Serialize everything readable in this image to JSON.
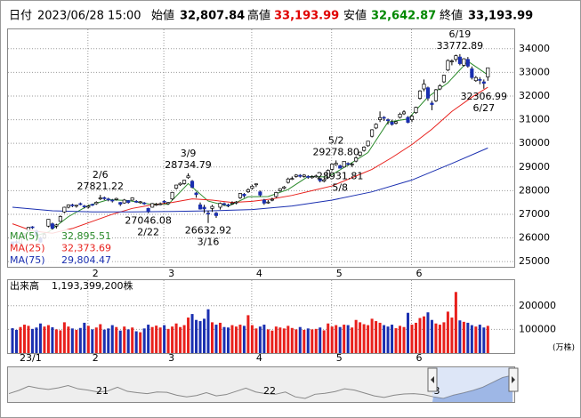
{
  "chart_data": {
    "type": "candlestick",
    "header": {
      "date_label": "日付",
      "date": "2023/06/28 15:00",
      "open_label": "始値",
      "open": "32,807.84",
      "high_label": "高値",
      "high": "33,193.99",
      "low_label": "安値",
      "low": "32,642.87",
      "close_label": "終値",
      "close": "33,193.99"
    },
    "categories": [
      "23/1",
      null,
      null,
      null,
      null,
      null,
      null,
      null,
      null,
      null,
      null,
      null,
      null,
      null,
      null,
      null,
      null,
      null,
      null,
      "2",
      null,
      null,
      null,
      null,
      null,
      null,
      null,
      null,
      null,
      null,
      null,
      null,
      null,
      null,
      null,
      null,
      null,
      null,
      "3",
      null,
      null,
      null,
      null,
      null,
      null,
      null,
      null,
      null,
      null,
      null,
      null,
      null,
      null,
      null,
      null,
      null,
      null,
      null,
      null,
      null,
      "4",
      null,
      null,
      null,
      null,
      null,
      null,
      null,
      null,
      null,
      null,
      null,
      null,
      null,
      null,
      null,
      null,
      null,
      null,
      null,
      "5",
      null,
      null,
      null,
      null,
      null,
      null,
      null,
      null,
      null,
      null,
      null,
      null,
      null,
      null,
      null,
      null,
      null,
      null,
      null,
      "6",
      null,
      null,
      null,
      null,
      null,
      null,
      null,
      null,
      null,
      null,
      null,
      null,
      null,
      null,
      null,
      null,
      null,
      null,
      null
    ],
    "ohlc": [
      [
        25834,
        25834,
        25661,
        25716
      ],
      [
        25840,
        25900,
        25750,
        25820
      ],
      [
        25780,
        26000,
        25700,
        25973
      ],
      [
        26100,
        26200,
        25980,
        26175
      ],
      [
        26300,
        26460,
        26250,
        26446
      ],
      [
        26470,
        26500,
        26380,
        26449
      ],
      [
        26300,
        26350,
        26050,
        26119
      ],
      [
        26000,
        26050,
        25800,
        25822
      ],
      [
        26000,
        26200,
        25950,
        26138
      ],
      [
        26500,
        26800,
        26450,
        26791
      ],
      [
        26600,
        26650,
        26350,
        26405
      ],
      [
        26500,
        26600,
        26400,
        26553
      ],
      [
        26700,
        26950,
        26680,
        26906
      ],
      [
        27100,
        27320,
        27050,
        27299
      ],
      [
        27300,
        27420,
        27250,
        27395
      ],
      [
        27400,
        27450,
        27300,
        27362
      ],
      [
        27350,
        27400,
        27280,
        27382
      ],
      [
        27450,
        27500,
        27380,
        27433
      ],
      [
        27350,
        27400,
        27250,
        27327
      ],
      [
        27300,
        27400,
        27250,
        27346
      ],
      [
        27420,
        27450,
        27350,
        27402
      ],
      [
        27450,
        27550,
        27400,
        27509
      ],
      [
        27650,
        27821.22,
        27600,
        27693
      ],
      [
        27700,
        27750,
        27600,
        27685
      ],
      [
        27650,
        27700,
        27550,
        27606
      ],
      [
        27600,
        27650,
        27500,
        27584
      ],
      [
        27620,
        27700,
        27580,
        27670
      ],
      [
        27500,
        27520,
        27350,
        27427
      ],
      [
        27480,
        27650,
        27450,
        27602
      ],
      [
        27580,
        27600,
        27450,
        27501
      ],
      [
        27600,
        27720,
        27580,
        27696
      ],
      [
        27550,
        27600,
        27480,
        27513
      ],
      [
        27500,
        27560,
        27450,
        27531
      ],
      [
        27480,
        27520,
        27400,
        27473
      ],
      [
        27250,
        27280,
        27046.08,
        27104
      ],
      [
        27300,
        27480,
        27280,
        27453
      ],
      [
        27400,
        27480,
        27350,
        27423
      ],
      [
        27420,
        27500,
        27380,
        27445
      ],
      [
        27550,
        27600,
        27450,
        27516
      ],
      [
        27450,
        27520,
        27400,
        27498
      ],
      [
        27650,
        27950,
        27600,
        27927
      ],
      [
        28100,
        28250,
        28050,
        28237
      ],
      [
        28250,
        28350,
        28200,
        28309
      ],
      [
        28300,
        28460,
        28250,
        28444
      ],
      [
        28550,
        28734.79,
        28500,
        28623
      ],
      [
        28400,
        28450,
        28100,
        28143
      ],
      [
        27900,
        27950,
        27700,
        27832
      ],
      [
        27400,
        27500,
        27200,
        27222
      ],
      [
        27300,
        27400,
        27050,
        27229
      ],
      [
        27050,
        27150,
        26632.92,
        27010
      ],
      [
        27250,
        27400,
        27100,
        27333
      ],
      [
        27050,
        27100,
        26850,
        26945
      ],
      [
        27300,
        27500,
        27200,
        27466
      ],
      [
        27450,
        27500,
        27350,
        27419
      ],
      [
        27400,
        27450,
        27300,
        27385
      ],
      [
        27450,
        27550,
        27400,
        27476
      ],
      [
        27500,
        27560,
        27420,
        27518
      ],
      [
        27700,
        27900,
        27650,
        27883
      ],
      [
        27850,
        27900,
        27700,
        27782
      ],
      [
        27950,
        28100,
        27900,
        28041
      ],
      [
        28100,
        28250,
        28050,
        28188
      ],
      [
        28250,
        28300,
        28150,
        28287
      ],
      [
        27950,
        28000,
        27750,
        27813
      ],
      [
        27600,
        27650,
        27400,
        27472
      ],
      [
        27500,
        27600,
        27450,
        27518
      ],
      [
        27600,
        27700,
        27550,
        27633
      ],
      [
        27750,
        27950,
        27700,
        27923
      ],
      [
        28000,
        28100,
        27950,
        28082
      ],
      [
        28100,
        28200,
        28050,
        28156
      ],
      [
        28350,
        28550,
        28300,
        28493
      ],
      [
        28500,
        28600,
        28450,
        28514
      ],
      [
        28600,
        28700,
        28550,
        28658
      ],
      [
        28650,
        28700,
        28550,
        28606
      ],
      [
        28600,
        28700,
        28550,
        28657
      ],
      [
        28600,
        28650,
        28500,
        28564
      ],
      [
        28550,
        28650,
        28500,
        28593
      ],
      [
        28600,
        28680,
        28550,
        28620
      ],
      [
        28500,
        28550,
        28350,
        28416
      ],
      [
        28400,
        28500,
        28350,
        28457
      ],
      [
        28550,
        28900,
        28500,
        28856
      ],
      [
        28900,
        29150,
        28850,
        29123
      ],
      [
        29100,
        29278.8,
        29050,
        29157
      ],
      [
        29050,
        29100,
        28931.81,
        28949
      ],
      [
        29000,
        29250,
        28980,
        29242
      ],
      [
        29150,
        29200,
        29050,
        29122
      ],
      [
        29100,
        29180,
        29000,
        29126
      ],
      [
        29250,
        29450,
        29200,
        29388
      ],
      [
        29500,
        29650,
        29450,
        29626
      ],
      [
        29700,
        29880,
        29650,
        29842
      ],
      [
        29900,
        30100,
        29850,
        30093
      ],
      [
        30300,
        30600,
        30250,
        30573
      ],
      [
        30650,
        30850,
        30600,
        30808
      ],
      [
        31000,
        31350,
        30900,
        31086
      ],
      [
        31100,
        31150,
        30950,
        31086
      ],
      [
        31000,
        31050,
        30800,
        30957
      ],
      [
        30900,
        31000,
        30750,
        30801
      ],
      [
        30850,
        30950,
        30800,
        30916
      ],
      [
        31100,
        31300,
        31050,
        31233
      ],
      [
        31250,
        31400,
        31200,
        31328
      ],
      [
        31100,
        31150,
        30850,
        30887
      ],
      [
        31000,
        31200,
        30900,
        31148
      ],
      [
        31300,
        31550,
        31250,
        31524
      ],
      [
        31900,
        32250,
        31850,
        32217
      ],
      [
        32300,
        32700,
        32200,
        32506
      ],
      [
        32350,
        32400,
        31800,
        31913
      ],
      [
        31700,
        31800,
        31400,
        31641
      ],
      [
        31800,
        32300,
        31750,
        32265
      ],
      [
        32300,
        32500,
        32250,
        32434
      ],
      [
        32600,
        32900,
        32550,
        32880
      ],
      [
        33100,
        33550,
        33050,
        33502
      ],
      [
        33450,
        33550,
        33300,
        33485
      ],
      [
        33550,
        33750,
        33450,
        33706
      ],
      [
        33650,
        33772.89,
        33300,
        33370
      ],
      [
        33300,
        33600,
        33250,
        33575
      ],
      [
        33550,
        33650,
        33200,
        33264
      ],
      [
        33150,
        33250,
        32700,
        32781
      ],
      [
        32650,
        32850,
        32600,
        32781
      ],
      [
        32700,
        32800,
        32500,
        32698
      ],
      [
        32600,
        32700,
        32306.99,
        32538
      ],
      [
        32807.84,
        33193.99,
        32642.87,
        33193.99
      ]
    ],
    "volume": [
      105000,
      98000,
      110000,
      120000,
      115000,
      102000,
      108000,
      125000,
      112000,
      118000,
      109000,
      100000,
      96000,
      130000,
      112000,
      104000,
      98000,
      106000,
      128000,
      115000,
      100000,
      108000,
      122000,
      99000,
      104000,
      118000,
      110000,
      95000,
      112000,
      100000,
      108000,
      92000,
      88000,
      104000,
      120000,
      110000,
      116000,
      108000,
      118000,
      102000,
      112000,
      125000,
      110000,
      118000,
      150000,
      165000,
      140000,
      135000,
      145000,
      185000,
      130000,
      120000,
      128000,
      110000,
      108000,
      118000,
      112000,
      120000,
      115000,
      160000,
      118000,
      104000,
      112000,
      120000,
      100000,
      95000,
      112000,
      108000,
      104000,
      115000,
      106000,
      100000,
      110000,
      98000,
      104000,
      100000,
      102000,
      108000,
      96000,
      125000,
      112000,
      118000,
      110000,
      120000,
      118000,
      108000,
      140000,
      130000,
      122000,
      118000,
      145000,
      135000,
      128000,
      118000,
      112000,
      120000,
      105000,
      115000,
      110000,
      170000,
      120000,
      128000,
      148000,
      155000,
      172000,
      140000,
      125000,
      120000,
      130000,
      175000,
      150000,
      258000,
      138000,
      132000,
      128000,
      118000,
      112000,
      120000,
      108000,
      115000
    ],
    "ylim": [
      24780,
      34820
    ],
    "yticks": [
      25000,
      26000,
      27000,
      28000,
      29000,
      30000,
      31000,
      32000,
      33000,
      34000
    ],
    "volume_ylim": [
      0,
      308000
    ],
    "volume_yticks": [
      100000,
      200000
    ],
    "volume_title": "出来高",
    "volume_total": "1,193,399,200株",
    "volume_unit": "(万株)",
    "up_color": "#e8201c",
    "down_color": "#1a2fb0",
    "grid": true,
    "series": [
      {
        "name": "MA(5)",
        "color": "#2a8a2a",
        "legend_label": "32,895.51",
        "x": [
          4,
          9,
          14,
          19,
          24,
          29,
          34,
          39,
          44,
          49,
          54,
          59,
          64,
          69,
          74,
          79,
          84,
          89,
          94,
          99,
          104,
          109,
          114,
          119
        ],
        "values": [
          26000,
          26250,
          26900,
          27370,
          27620,
          27580,
          27440,
          27420,
          28300,
          27560,
          27340,
          27740,
          27750,
          28050,
          28600,
          28580,
          29080,
          29610,
          30900,
          31030,
          31960,
          32560,
          33470,
          32895.51
        ]
      },
      {
        "name": "MA(25)",
        "color": "#e8201c",
        "legend_label": "32,373.69",
        "x": [
          0,
          5,
          10,
          15,
          20,
          25,
          30,
          35,
          40,
          45,
          50,
          55,
          60,
          65,
          70,
          75,
          80,
          85,
          90,
          95,
          100,
          105,
          110,
          115,
          119
        ],
        "values": [
          26600,
          26300,
          26200,
          26400,
          26700,
          27000,
          27250,
          27400,
          27500,
          27650,
          27600,
          27500,
          27550,
          27650,
          27800,
          28000,
          28200,
          28550,
          28900,
          29400,
          29950,
          30600,
          31350,
          31950,
          32373.69
        ]
      },
      {
        "name": "MA(75)",
        "color": "#1a2fb0",
        "legend_label": "29,804.47",
        "x": [
          0,
          10,
          20,
          30,
          40,
          50,
          60,
          70,
          80,
          90,
          100,
          110,
          119
        ],
        "values": [
          27300,
          27150,
          27100,
          27100,
          27120,
          27150,
          27200,
          27350,
          27600,
          27950,
          28450,
          29150,
          29804.47
        ]
      }
    ],
    "annotations": [
      {
        "date": "2/6",
        "label": "27821.22",
        "value": 27821.22
      },
      {
        "date": "2/22",
        "label": "27046.08",
        "value": 27046.08
      },
      {
        "date": "3/9",
        "label": "28734.79",
        "value": 28734.79
      },
      {
        "date": "3/16",
        "label": "26632.92",
        "value": 26632.92
      },
      {
        "date": "5/2",
        "label": "29278.80",
        "value": 29278.8
      },
      {
        "date": "5/8",
        "label": "28931.81",
        "value": 28931.81
      },
      {
        "date": "6/19",
        "label": "33772.89",
        "value": 33772.89
      },
      {
        "date": "6/27",
        "label": "32306.99",
        "value": 32306.99
      }
    ],
    "navigator": {
      "labels": [
        "21",
        "22",
        "3"
      ],
      "values": [
        27500,
        28500,
        29800,
        29200,
        28800,
        29300,
        30000,
        29000,
        28600,
        28000,
        28300,
        29500,
        28200,
        27800,
        27500,
        28000,
        27900,
        27000,
        26500,
        26900,
        27800,
        26800,
        27200,
        28200,
        29200,
        28000,
        27500,
        27300,
        28000,
        26500,
        26000,
        27300,
        27600,
        28100,
        29000,
        28600,
        27700,
        26800,
        26300,
        27000,
        27400,
        27500,
        27200,
        26500,
        26000,
        27000,
        27700,
        28500,
        29500,
        31000,
        32500,
        33200
      ]
    }
  }
}
